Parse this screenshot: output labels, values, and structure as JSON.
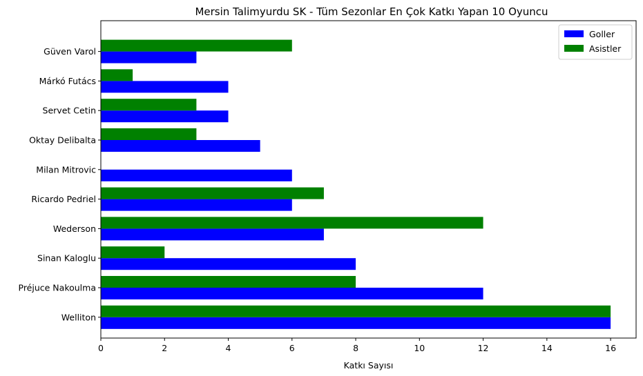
{
  "chart_data": {
    "type": "bar",
    "orientation": "horizontal",
    "title": "Mersin Talimyurdu SK - Tüm Sezonlar En Çok Katkı Yapan 10 Oyuncu",
    "xlabel": "Katkı Sayısı",
    "ylabel": "",
    "xlim": [
      0,
      16.8
    ],
    "xticks": [
      0,
      2,
      4,
      6,
      8,
      10,
      12,
      14,
      16
    ],
    "grid": false,
    "legend_position": "top-right",
    "categories": [
      "Welliton",
      "Préjuce Nakoulma",
      "Sinan Kaloglu",
      "Wederson",
      "Ricardo Pedriel",
      "Milan Mitrovic",
      "Oktay Delibalta",
      "Servet Cetin",
      "Márkó Futács",
      "Güven Varol"
    ],
    "series": [
      {
        "name": "Goller",
        "color": "#0000ff",
        "values": [
          16,
          12,
          8,
          7,
          6,
          6,
          5,
          4,
          4,
          3
        ]
      },
      {
        "name": "Asistler",
        "color": "#008000",
        "values": [
          16,
          8,
          2,
          12,
          7,
          0,
          3,
          3,
          1,
          6
        ]
      }
    ]
  }
}
